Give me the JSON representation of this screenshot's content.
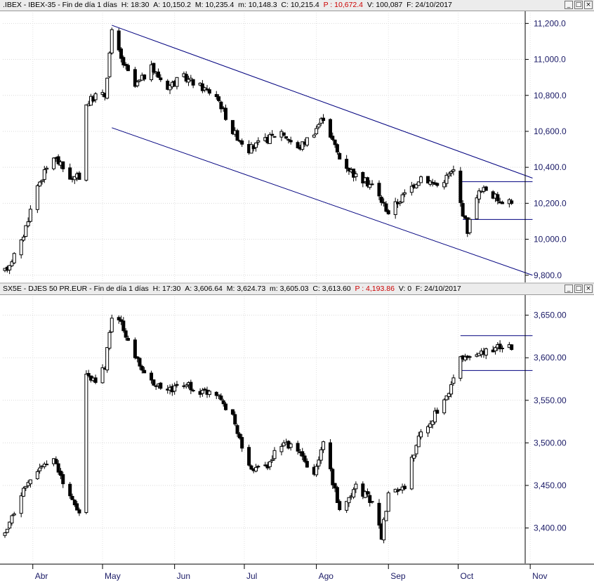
{
  "panels": [
    {
      "header": {
        "symbol": ".IBEX",
        "name": "IBEX-35",
        "period": "Fin de día 1 días",
        "time": "H: 18:30",
        "open": "A: 10,150.2",
        "high": "M: 10,235.4",
        "low": "m: 10,148.3",
        "close": "C: 10,215.4",
        "prev": "P : 10,672.4",
        "volume": "V: 100,087",
        "date": "F: 24/10/2017"
      }
    },
    {
      "header": {
        "symbol": "SX5E",
        "name": "DJES 50 PR.EUR",
        "period": "Fin de día 1 días",
        "time": "H: 17:30",
        "open": "A: 3,606.64",
        "high": "M: 3,624.73",
        "low": "m: 3,605.03",
        "close": "C: 3,613.60",
        "prev": "P : 4,193.86",
        "volume": "V: 0",
        "date": "F: 24/10/2017"
      }
    }
  ],
  "window_buttons": [
    "_",
    "□",
    "×"
  ],
  "colors": {
    "candle": "#000000",
    "trendline": "#00007f",
    "axis_text": "#1a1a66",
    "header_bg": "#ececec",
    "prev_value": "#cc0000"
  },
  "chart_data": [
    {
      "type": "candlestick",
      "title": "IBEX-35",
      "y_ticks": [
        9800,
        10000,
        10200,
        10400,
        10600,
        10800,
        11000,
        11200
      ],
      "y_tick_labels": [
        "9,800.0",
        "10,000.0",
        "10,200.0",
        "10,400.0",
        "10,600.0",
        "10,800.0",
        "11,000.0",
        "11,200.0"
      ],
      "ylim": [
        9760,
        11260
      ],
      "x_months": [
        "Abr",
        "May",
        "Jun",
        "Jul",
        "Ago",
        "Sep",
        "Oct",
        "Nov"
      ],
      "x_start": "2017-03-20",
      "x_end": "2017-11-05",
      "anchors": [
        [
          "2017-03-20",
          9820
        ],
        [
          "2017-03-27",
          9980
        ],
        [
          "2017-04-03",
          10300
        ],
        [
          "2017-04-10",
          10460
        ],
        [
          "2017-04-18",
          10330
        ],
        [
          "2017-04-21",
          10350
        ],
        [
          "2017-04-24",
          10750
        ],
        [
          "2017-04-28",
          10800
        ],
        [
          "2017-05-02",
          10800
        ],
        [
          "2017-05-05",
          11150
        ],
        [
          "2017-05-09",
          11000
        ],
        [
          "2017-05-15",
          10850
        ],
        [
          "2017-05-22",
          10950
        ],
        [
          "2017-05-29",
          10850
        ],
        [
          "2017-06-05",
          10900
        ],
        [
          "2017-06-12",
          10850
        ],
        [
          "2017-06-19",
          10800
        ],
        [
          "2017-06-26",
          10600
        ],
        [
          "2017-07-03",
          10500
        ],
        [
          "2017-07-10",
          10550
        ],
        [
          "2017-07-17",
          10600
        ],
        [
          "2017-07-24",
          10500
        ],
        [
          "2017-07-31",
          10600
        ],
        [
          "2017-08-04",
          10680
        ],
        [
          "2017-08-11",
          10450
        ],
        [
          "2017-08-18",
          10350
        ],
        [
          "2017-08-25",
          10300
        ],
        [
          "2017-09-01",
          10150
        ],
        [
          "2017-09-08",
          10250
        ],
        [
          "2017-09-15",
          10350
        ],
        [
          "2017-09-22",
          10300
        ],
        [
          "2017-09-29",
          10380
        ],
        [
          "2017-10-02",
          10200
        ],
        [
          "2017-10-05",
          10050
        ],
        [
          "2017-10-09",
          10250
        ],
        [
          "2017-10-13",
          10280
        ],
        [
          "2017-10-18",
          10220
        ],
        [
          "2017-10-24",
          10215
        ]
      ],
      "trendlines": [
        {
          "from": [
            "2017-05-05",
            11190
          ],
          "to": [
            "2017-11-02",
            10340
          ]
        },
        {
          "from": [
            "2017-05-05",
            10620
          ],
          "to": [
            "2017-11-02",
            9800
          ]
        },
        {
          "from": [
            "2017-10-02",
            10320
          ],
          "to": [
            "2017-11-02",
            10320
          ]
        },
        {
          "from": [
            "2017-10-03",
            10110
          ],
          "to": [
            "2017-11-02",
            10110
          ]
        }
      ]
    },
    {
      "type": "candlestick",
      "title": "DJES 50 PR.EUR",
      "y_ticks": [
        3400,
        3450,
        3500,
        3550,
        3600,
        3650
      ],
      "y_tick_labels": [
        "3,400.00",
        "3,450.00",
        "3,500.00",
        "3,550.00",
        "3,600.00",
        "3,650.00"
      ],
      "ylim": [
        3360,
        3672
      ],
      "x_months": [
        "Abr",
        "May",
        "Jun",
        "Jul",
        "Ago",
        "Sep",
        "Oct",
        "Nov"
      ],
      "x_start": "2017-03-20",
      "x_end": "2017-11-05",
      "anchors": [
        [
          "2017-03-20",
          3390
        ],
        [
          "2017-03-27",
          3440
        ],
        [
          "2017-04-03",
          3470
        ],
        [
          "2017-04-10",
          3480
        ],
        [
          "2017-04-18",
          3430
        ],
        [
          "2017-04-21",
          3420
        ],
        [
          "2017-04-24",
          3580
        ],
        [
          "2017-04-28",
          3570
        ],
        [
          "2017-05-02",
          3590
        ],
        [
          "2017-05-05",
          3650
        ],
        [
          "2017-05-09",
          3640
        ],
        [
          "2017-05-15",
          3600
        ],
        [
          "2017-05-22",
          3570
        ],
        [
          "2017-05-29",
          3560
        ],
        [
          "2017-06-05",
          3570
        ],
        [
          "2017-06-12",
          3560
        ],
        [
          "2017-06-19",
          3560
        ],
        [
          "2017-06-26",
          3530
        ],
        [
          "2017-07-03",
          3470
        ],
        [
          "2017-07-10",
          3470
        ],
        [
          "2017-07-17",
          3500
        ],
        [
          "2017-07-24",
          3490
        ],
        [
          "2017-07-31",
          3460
        ],
        [
          "2017-08-04",
          3500
        ],
        [
          "2017-08-11",
          3420
        ],
        [
          "2017-08-18",
          3450
        ],
        [
          "2017-08-25",
          3430
        ],
        [
          "2017-08-29",
          3390
        ],
        [
          "2017-09-01",
          3440
        ],
        [
          "2017-09-08",
          3450
        ],
        [
          "2017-09-13",
          3500
        ],
        [
          "2017-09-20",
          3530
        ],
        [
          "2017-09-27",
          3555
        ],
        [
          "2017-10-02",
          3600
        ],
        [
          "2017-10-09",
          3605
        ],
        [
          "2017-10-16",
          3610
        ],
        [
          "2017-10-20",
          3612
        ],
        [
          "2017-10-24",
          3614
        ]
      ],
      "trendlines": [
        {
          "from": [
            "2017-10-02",
            3626
          ],
          "to": [
            "2017-11-02",
            3626
          ]
        },
        {
          "from": [
            "2017-10-02",
            3585
          ],
          "to": [
            "2017-11-02",
            3585
          ]
        }
      ]
    }
  ]
}
